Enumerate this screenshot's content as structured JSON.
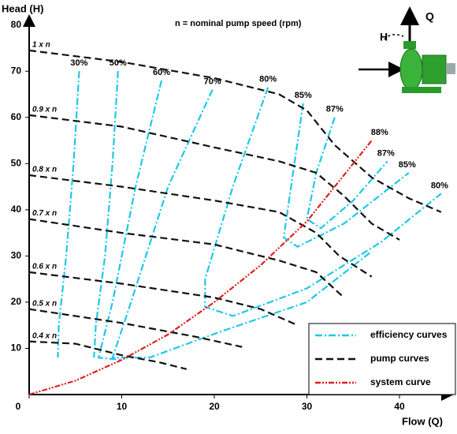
{
  "chart_data": {
    "type": "line",
    "note": "n = nominal pump speed (rpm)",
    "y_label": "Head (H)",
    "x_label": "Flow (Q)",
    "icon_labels": {
      "head": "H",
      "flow": "Q"
    },
    "xlim": [
      0,
      46
    ],
    "ylim": [
      0,
      82
    ],
    "xticks": [
      0,
      10,
      20,
      30,
      40
    ],
    "yticks": [
      10,
      20,
      30,
      40,
      50,
      60,
      70,
      80
    ],
    "legend": "lower right",
    "series": [
      {
        "name": "efficiency curves",
        "color": "#1ec8e6",
        "dash": "dashdot",
        "curves": [
          {
            "label": "30%",
            "x": [
              5.4,
              4.8,
              4,
              3.2,
              3.1
            ],
            "y": [
              70,
              50,
              30,
              15,
              8
            ]
          },
          {
            "label": "50%",
            "x": [
              9.6,
              9,
              8.2,
              7.2,
              7
            ],
            "y": [
              70,
              50,
              30,
              15,
              8
            ]
          },
          {
            "label": "60%",
            "x": [
              14.3,
              11.5,
              9,
              7.5,
              10
            ],
            "y": [
              68,
              45,
              20,
              8,
              7.5
            ]
          },
          {
            "label": "70%",
            "x": [
              19.8,
              15,
              11,
              9,
              13,
              20.5,
              30,
              37
            ],
            "y": [
              66,
              45,
              20,
              8,
              8,
              13.5,
              20,
              31
            ]
          },
          {
            "label": "80%",
            "end_label": "80%",
            "x": [
              25.8,
              22,
              19,
              19,
              22,
              30,
              38,
              44.5
            ],
            "y": [
              66.5,
              45,
              25,
              19,
              17,
              23,
              33,
              43.5
            ]
          },
          {
            "label": "85%",
            "end_label": "85%",
            "x": [
              29.6,
              28.5,
              27.5,
              29,
              34,
              41
            ],
            "y": [
              63,
              48,
              34,
              32,
              37,
              48
            ]
          },
          {
            "label": "87%",
            "end_label": "87%",
            "x": [
              33,
              31,
              30,
              31.5,
              35,
              38.7
            ],
            "y": [
              60,
              48,
              38,
              36,
              42,
              50.5
            ]
          }
        ]
      },
      {
        "name": "pump curves",
        "color": "#111111",
        "dash": "dashed",
        "curves": [
          {
            "label": "1 x n",
            "x": [
              0,
              10,
              20,
              27,
              30,
              33,
              37,
              41,
              44.5
            ],
            "y": [
              74.5,
              72,
              68.5,
              65,
              61.5,
              54,
              47,
              42.5,
              39.5
            ]
          },
          {
            "label": "0.9 x n",
            "x": [
              0,
              10,
              20,
              27,
              31,
              34,
              37,
              40
            ],
            "y": [
              60.5,
              58,
              53.5,
              50.5,
              48,
              43,
              37,
              33.5
            ]
          },
          {
            "label": "0.8 x n",
            "x": [
              0,
              10,
              20,
              27,
              31,
              33.5,
              37
            ],
            "y": [
              47.5,
              45,
              42,
              39.5,
              35,
              30,
              25.5
            ]
          },
          {
            "label": "0.7 x n",
            "x": [
              0,
              10,
              20,
              27,
              31,
              34
            ],
            "y": [
              38,
              35,
              32.5,
              29,
              26.5,
              21
            ]
          },
          {
            "label": "0.6 x n",
            "x": [
              0,
              10,
              20,
              25,
              29
            ],
            "y": [
              26.5,
              24,
              21,
              18.5,
              15
            ]
          },
          {
            "label": "0.5 x n",
            "x": [
              0,
              10,
              18,
              23
            ],
            "y": [
              18.5,
              15.5,
              12.5,
              10.3
            ]
          },
          {
            "label": "0.4 x n",
            "x": [
              0,
              5,
              10,
              14,
              17
            ],
            "y": [
              11.5,
              11,
              8.5,
              7,
              5.5
            ]
          }
        ]
      },
      {
        "name": "system curve",
        "color": "#e0201e",
        "dash": "dashdotdot",
        "curves": [
          {
            "label": "88%",
            "x": [
              0,
              5,
              10,
              15,
              20,
              25,
              30,
              35,
              37
            ],
            "y": [
              0,
              3,
              7.5,
              13,
              20,
              28,
              37.5,
              50,
              55
            ]
          }
        ]
      }
    ]
  }
}
